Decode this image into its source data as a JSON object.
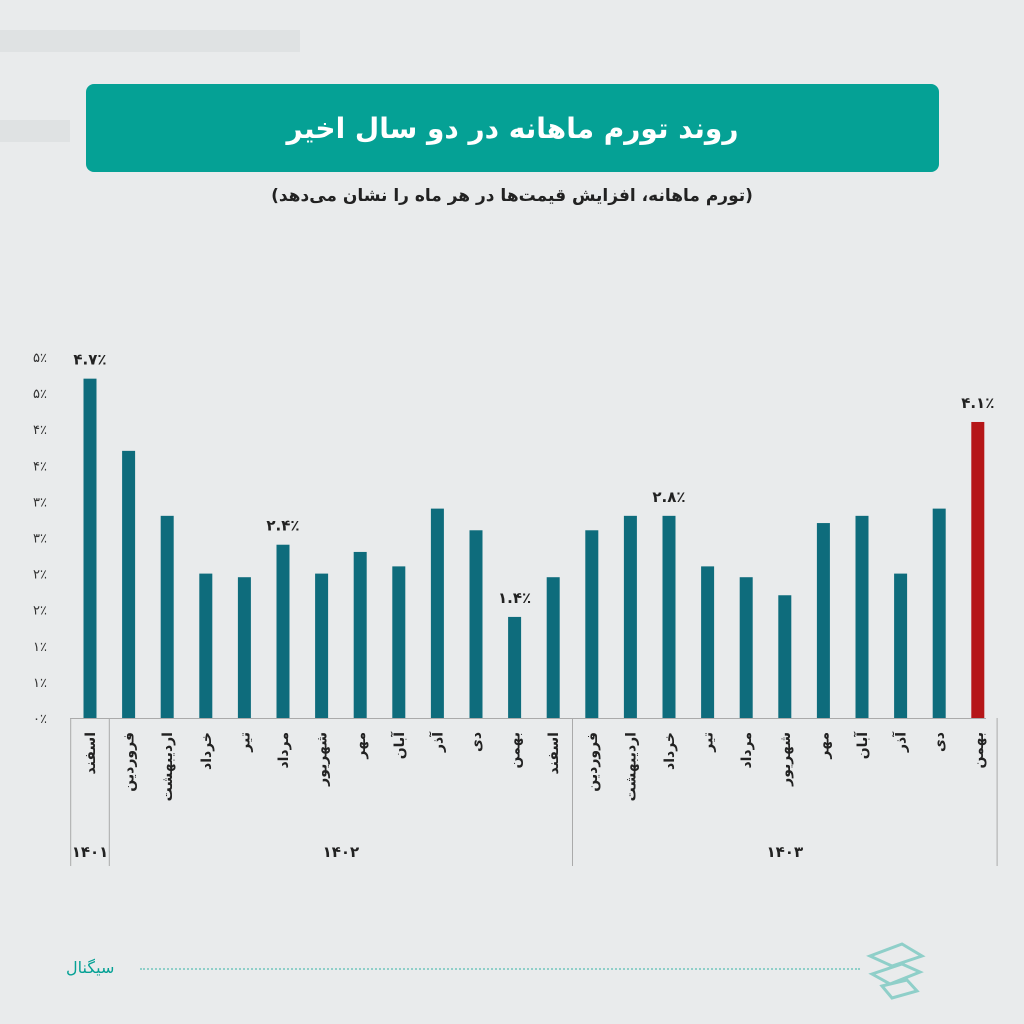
{
  "title": "روند تورم ماهانه در دو سال اخیر",
  "subtitle": "(تورم ماهانه، افزایش قیمت‌ها در هر ماه را نشان می‌دهد)",
  "brand": "سیگنال",
  "colors": {
    "accent": "#05a195",
    "bar": "#0e6c7c",
    "highlight": "#b51618"
  },
  "chart_data": {
    "type": "bar",
    "y_ticks": [
      "۰٪",
      "۱٪",
      "۱٪",
      "۲٪",
      "۲٪",
      "۳٪",
      "۳٪",
      "۴٪",
      "۴٪",
      "۵٪",
      "۵٪"
    ],
    "ylim": [
      0,
      5
    ],
    "categories": [
      "اسفند",
      "فروردین",
      "اردیبهشت",
      "خرداد",
      "تیر",
      "مرداد",
      "شهریور",
      "مهر",
      "آبان",
      "آذر",
      "دی",
      "بهمن",
      "اسفند",
      "فروردین",
      "اردیبهشت",
      "خرداد",
      "تیر",
      "مرداد",
      "شهریور",
      "مهر",
      "آبان",
      "آذر",
      "دی",
      "بهمن"
    ],
    "values": [
      4.7,
      3.7,
      2.8,
      2.0,
      1.95,
      2.4,
      2.0,
      2.3,
      2.1,
      2.9,
      2.6,
      1.4,
      1.95,
      2.6,
      2.8,
      2.8,
      2.1,
      1.95,
      1.7,
      2.7,
      2.8,
      2.0,
      2.9,
      4.1
    ],
    "highlight_index": 23,
    "data_labels": [
      {
        "index": 0,
        "text": "۴.۷٪"
      },
      {
        "index": 5,
        "text": "۲.۴٪"
      },
      {
        "index": 11,
        "text": "۱.۴٪"
      },
      {
        "index": 15,
        "text": "۲.۸٪"
      },
      {
        "index": 23,
        "text": "۴.۱٪"
      }
    ],
    "year_groups": [
      {
        "label": "۱۴۰۱",
        "start": 0,
        "end": 0
      },
      {
        "label": "۱۴۰۲",
        "start": 1,
        "end": 12
      },
      {
        "label": "۱۴۰۳",
        "start": 13,
        "end": 23
      }
    ]
  }
}
